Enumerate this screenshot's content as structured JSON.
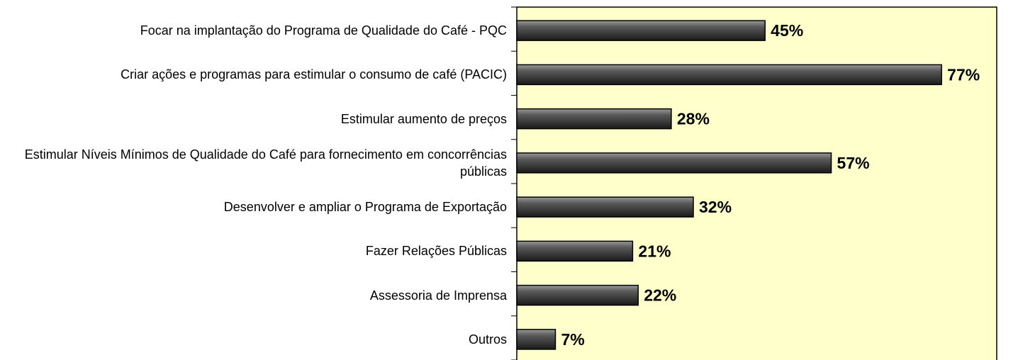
{
  "chart_data": {
    "type": "bar",
    "orientation": "horizontal",
    "categories": [
      "Focar na implantação do Programa de Qualidade do Café - PQC",
      "Criar ações e programas para estimular o consumo de café (PACIC)",
      "Estimular aumento de preços",
      "Estimular Níveis Mínimos de Qualidade do Café para fornecimento em concorrências públicas",
      "Desenvolver e ampliar o Programa de Exportação",
      "Fazer Relações Públicas",
      "Assessoria de Imprensa",
      "Outros"
    ],
    "values": [
      45,
      77,
      28,
      57,
      32,
      21,
      22,
      7
    ],
    "value_labels": [
      "45%",
      "77%",
      "28%",
      "57%",
      "32%",
      "21%",
      "22%",
      "7%"
    ],
    "color": "#404040",
    "background": "#ffffcc",
    "xlim": [
      0,
      87
    ]
  }
}
